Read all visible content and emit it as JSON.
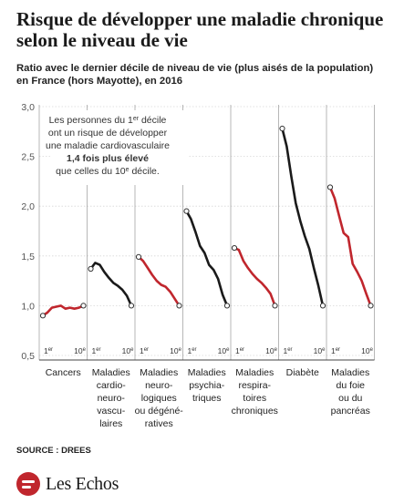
{
  "title": "Risque  de développer une maladie chronique selon le niveau de vie",
  "subtitle_line1": "Ratio avec le dernier décile de niveau de vie (plus aisés de la population)",
  "subtitle_line2": "en France (hors Mayotte), en 2016",
  "source": "SOURCE : DREES",
  "logo": "Les Echos",
  "colors": {
    "red": "#c0262d",
    "black": "#1a1a1a",
    "grid": "#d7d7d7",
    "axis": "#555555"
  },
  "annotation": {
    "line1a": "Les personnes du 1",
    "line1sup": "er",
    "line1b": " décile",
    "line2": "ont un risque de développer",
    "line3": "une maladie cardiovasculaire",
    "line4": "1,4 fois plus élevé",
    "line5a": "que celles du 10",
    "line5sup": "e",
    "line5b": " décile."
  },
  "chart_data": {
    "type": "line",
    "ylim": [
      0.5,
      3.0
    ],
    "yticks": [
      "0,5",
      "1,0",
      "1,5",
      "2,0",
      "2,5",
      "3,0"
    ],
    "ytick_values": [
      0.5,
      1.0,
      1.5,
      2.0,
      2.5,
      3.0
    ],
    "x_start_label": "1",
    "x_start_sup": "er",
    "x_end_label": "10",
    "x_end_sup": "e",
    "series": [
      {
        "name": "Cancers",
        "label_lines": [
          "Cancers"
        ],
        "color": "#c0262d",
        "values": [
          0.9,
          0.93,
          0.98,
          0.99,
          1.0,
          0.97,
          0.98,
          0.97,
          0.98,
          1.0
        ]
      },
      {
        "name": "Maladies cardio-neuro-vasculaires",
        "label_lines": [
          "Maladies",
          "cardio-",
          "neuro-",
          "vascu-",
          "laires"
        ],
        "color": "#1a1a1a",
        "values": [
          1.37,
          1.43,
          1.41,
          1.34,
          1.28,
          1.23,
          1.2,
          1.16,
          1.1,
          1.0
        ]
      },
      {
        "name": "Maladies neuro-logiques ou dégéné-ratives",
        "label_lines": [
          "Maladies",
          "neuro-",
          "logiques",
          "ou dégéné-",
          "ratives"
        ],
        "color": "#c0262d",
        "values": [
          1.49,
          1.45,
          1.38,
          1.31,
          1.25,
          1.21,
          1.19,
          1.14,
          1.07,
          1.0
        ]
      },
      {
        "name": "Maladies psychia-triques",
        "label_lines": [
          "Maladies",
          "psychia-",
          "triques"
        ],
        "color": "#1a1a1a",
        "values": [
          1.95,
          1.87,
          1.74,
          1.6,
          1.53,
          1.41,
          1.36,
          1.27,
          1.11,
          1.0
        ]
      },
      {
        "name": "Maladies respira-toires chroniques",
        "label_lines": [
          "Maladies",
          "respira-",
          "toires",
          "chroniques"
        ],
        "color": "#c0262d",
        "values": [
          1.58,
          1.56,
          1.45,
          1.38,
          1.32,
          1.27,
          1.23,
          1.18,
          1.12,
          1.0
        ]
      },
      {
        "name": "Diabète",
        "label_lines": [
          "Diabète"
        ],
        "color": "#1a1a1a",
        "values": [
          2.78,
          2.6,
          2.3,
          2.03,
          1.85,
          1.7,
          1.57,
          1.38,
          1.2,
          1.0
        ]
      },
      {
        "name": "Maladies du foie ou du pancréas",
        "label_lines": [
          "Maladies",
          "du foie",
          "ou du",
          "pancréas"
        ],
        "color": "#c0262d",
        "values": [
          2.19,
          2.08,
          1.9,
          1.73,
          1.69,
          1.42,
          1.34,
          1.25,
          1.12,
          1.0
        ]
      }
    ]
  }
}
